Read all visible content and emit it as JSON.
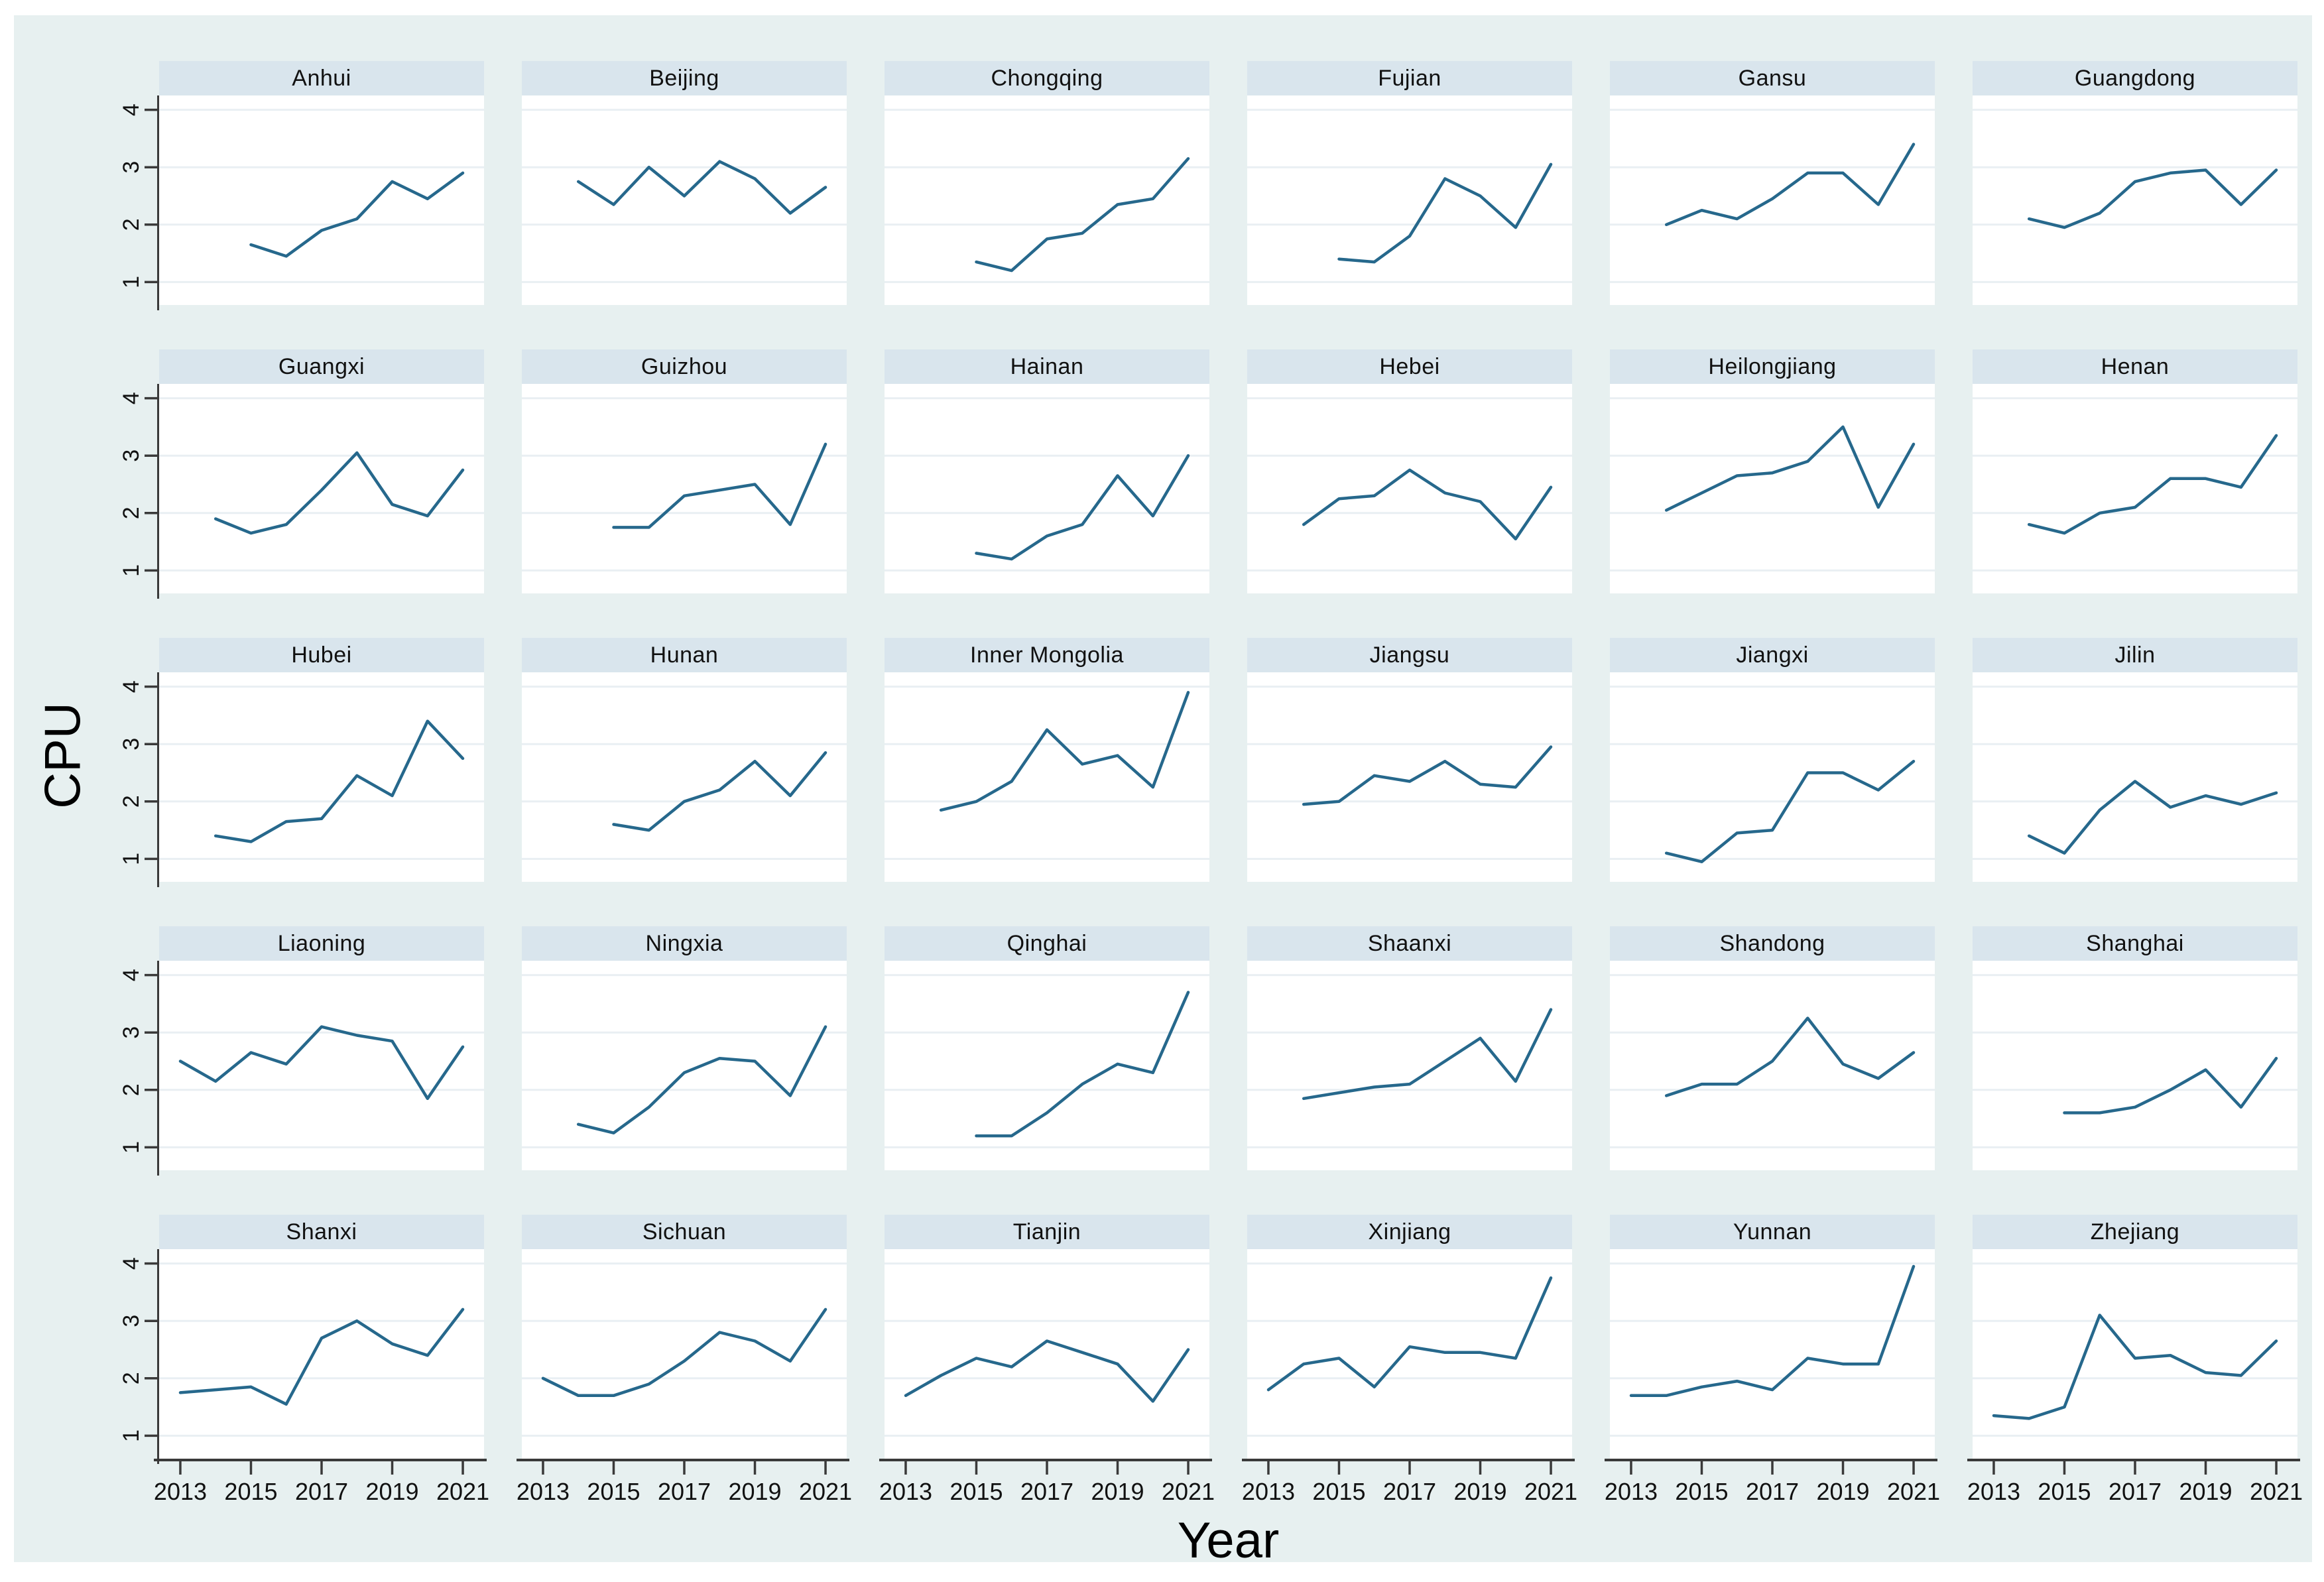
{
  "figure": {
    "background_color": "#e7f0f0",
    "panel_header_color": "#d9e5ed",
    "plot_background": "#ffffff",
    "gridline_color": "#e9eff3",
    "line_color": "#26688c",
    "axis_color": "#3a3a3a",
    "text_color": "#111111"
  },
  "chart_data": {
    "type": "line",
    "title": "",
    "xlabel": "Year",
    "ylabel": "CPU",
    "x_ticks": [
      2013,
      2015,
      2017,
      2019,
      2021
    ],
    "y_ticks": [
      1,
      2,
      3,
      4
    ],
    "x_domain": [
      2012.4,
      2021.6
    ],
    "y_domain": [
      0.6,
      4.25
    ],
    "grid": "horizontal-only",
    "legend_position": "none",
    "layout": {
      "columns": 6,
      "rows": 5
    },
    "panels": [
      {
        "title": "Anhui",
        "years": [
          2015,
          2016,
          2017,
          2018,
          2019,
          2020,
          2021
        ],
        "values": [
          1.65,
          1.45,
          1.9,
          2.1,
          2.75,
          2.45,
          2.9
        ]
      },
      {
        "title": "Beijing",
        "years": [
          2014,
          2015,
          2016,
          2017,
          2018,
          2019,
          2020,
          2021
        ],
        "values": [
          2.75,
          2.35,
          3.0,
          2.5,
          3.1,
          2.8,
          2.2,
          2.65
        ]
      },
      {
        "title": "Chongqing",
        "years": [
          2015,
          2016,
          2017,
          2018,
          2019,
          2020,
          2021
        ],
        "values": [
          1.35,
          1.2,
          1.75,
          1.85,
          2.35,
          2.45,
          3.15
        ]
      },
      {
        "title": "Fujian",
        "years": [
          2015,
          2016,
          2017,
          2018,
          2019,
          2020,
          2021
        ],
        "values": [
          1.4,
          1.35,
          1.8,
          2.8,
          2.5,
          1.95,
          3.05
        ]
      },
      {
        "title": "Gansu",
        "years": [
          2014,
          2015,
          2016,
          2017,
          2018,
          2019,
          2020,
          2021
        ],
        "values": [
          2.0,
          2.25,
          2.1,
          2.45,
          2.9,
          2.9,
          2.35,
          3.4
        ]
      },
      {
        "title": "Guangdong",
        "years": [
          2014,
          2015,
          2016,
          2017,
          2018,
          2019,
          2020,
          2021
        ],
        "values": [
          2.1,
          1.95,
          2.2,
          2.75,
          2.9,
          2.95,
          2.35,
          2.95
        ]
      },
      {
        "title": "Guangxi",
        "years": [
          2014,
          2015,
          2016,
          2017,
          2018,
          2019,
          2020,
          2021
        ],
        "values": [
          1.9,
          1.65,
          1.8,
          2.4,
          3.05,
          2.15,
          1.95,
          2.75
        ]
      },
      {
        "title": "Guizhou",
        "years": [
          2015,
          2016,
          2017,
          2018,
          2019,
          2020,
          2021
        ],
        "values": [
          1.75,
          1.75,
          2.3,
          2.4,
          2.5,
          1.8,
          3.2
        ]
      },
      {
        "title": "Hainan",
        "years": [
          2015,
          2016,
          2017,
          2018,
          2019,
          2020,
          2021
        ],
        "values": [
          1.3,
          1.2,
          1.6,
          1.8,
          2.65,
          1.95,
          3.0
        ]
      },
      {
        "title": "Hebei",
        "years": [
          2014,
          2015,
          2016,
          2017,
          2018,
          2019,
          2020,
          2021
        ],
        "values": [
          1.8,
          2.25,
          2.3,
          2.75,
          2.35,
          2.2,
          1.55,
          2.45
        ]
      },
      {
        "title": "Heilongjiang",
        "years": [
          2014,
          2015,
          2016,
          2017,
          2018,
          2019,
          2020,
          2021
        ],
        "values": [
          2.05,
          2.35,
          2.65,
          2.7,
          2.9,
          3.5,
          2.1,
          3.2
        ]
      },
      {
        "title": "Henan",
        "years": [
          2014,
          2015,
          2016,
          2017,
          2018,
          2019,
          2020,
          2021
        ],
        "values": [
          1.8,
          1.65,
          2.0,
          2.1,
          2.6,
          2.6,
          2.45,
          3.35
        ]
      },
      {
        "title": "Hubei",
        "years": [
          2014,
          2015,
          2016,
          2017,
          2018,
          2019,
          2020,
          2021
        ],
        "values": [
          1.4,
          1.3,
          1.65,
          1.7,
          2.45,
          2.1,
          3.4,
          2.75
        ]
      },
      {
        "title": "Hunan",
        "years": [
          2015,
          2016,
          2017,
          2018,
          2019,
          2020,
          2021
        ],
        "values": [
          1.6,
          1.5,
          2.0,
          2.2,
          2.7,
          2.1,
          2.85
        ]
      },
      {
        "title": "Inner Mongolia",
        "years": [
          2014,
          2015,
          2016,
          2017,
          2018,
          2019,
          2020,
          2021
        ],
        "values": [
          1.85,
          2.0,
          2.35,
          3.25,
          2.65,
          2.8,
          2.25,
          3.9
        ]
      },
      {
        "title": "Jiangsu",
        "years": [
          2014,
          2015,
          2016,
          2017,
          2018,
          2019,
          2020,
          2021
        ],
        "values": [
          1.95,
          2.0,
          2.45,
          2.35,
          2.7,
          2.3,
          2.25,
          2.95
        ]
      },
      {
        "title": "Jiangxi",
        "years": [
          2014,
          2015,
          2016,
          2017,
          2018,
          2019,
          2020,
          2021
        ],
        "values": [
          1.1,
          0.95,
          1.45,
          1.5,
          2.5,
          2.5,
          2.2,
          2.7
        ]
      },
      {
        "title": "Jilin",
        "years": [
          2014,
          2015,
          2016,
          2017,
          2018,
          2019,
          2020,
          2021
        ],
        "values": [
          1.4,
          1.1,
          1.85,
          2.35,
          1.9,
          2.1,
          1.95,
          2.15
        ]
      },
      {
        "title": "Liaoning",
        "years": [
          2013,
          2014,
          2015,
          2016,
          2017,
          2018,
          2019,
          2020,
          2021
        ],
        "values": [
          2.5,
          2.15,
          2.65,
          2.45,
          3.1,
          2.95,
          2.85,
          1.85,
          2.75
        ]
      },
      {
        "title": "Ningxia",
        "years": [
          2014,
          2015,
          2016,
          2017,
          2018,
          2019,
          2020,
          2021
        ],
        "values": [
          1.4,
          1.25,
          1.7,
          2.3,
          2.55,
          2.5,
          1.9,
          3.1
        ]
      },
      {
        "title": "Qinghai",
        "years": [
          2015,
          2016,
          2017,
          2018,
          2019,
          2020,
          2021
        ],
        "values": [
          1.2,
          1.2,
          1.6,
          2.1,
          2.45,
          2.3,
          3.7
        ]
      },
      {
        "title": "Shaanxi",
        "years": [
          2014,
          2015,
          2016,
          2017,
          2018,
          2019,
          2020,
          2021
        ],
        "values": [
          1.85,
          1.95,
          2.05,
          2.1,
          2.5,
          2.9,
          2.15,
          3.4
        ]
      },
      {
        "title": "Shandong",
        "years": [
          2014,
          2015,
          2016,
          2017,
          2018,
          2019,
          2020,
          2021
        ],
        "values": [
          1.9,
          2.1,
          2.1,
          2.5,
          3.25,
          2.45,
          2.2,
          2.65
        ]
      },
      {
        "title": "Shanghai",
        "years": [
          2015,
          2016,
          2017,
          2018,
          2019,
          2020,
          2021
        ],
        "values": [
          1.6,
          1.6,
          1.7,
          2.0,
          2.35,
          1.7,
          2.55
        ]
      },
      {
        "title": "Shanxi",
        "years": [
          2013,
          2014,
          2015,
          2016,
          2017,
          2018,
          2019,
          2020,
          2021
        ],
        "values": [
          1.75,
          1.8,
          1.85,
          1.55,
          2.7,
          3.0,
          2.6,
          2.4,
          3.2
        ]
      },
      {
        "title": "Sichuan",
        "years": [
          2013,
          2014,
          2015,
          2016,
          2017,
          2018,
          2019,
          2020,
          2021
        ],
        "values": [
          2.0,
          1.7,
          1.7,
          1.9,
          2.3,
          2.8,
          2.65,
          2.3,
          3.2
        ]
      },
      {
        "title": "Tianjin",
        "years": [
          2013,
          2014,
          2015,
          2016,
          2017,
          2018,
          2019,
          2020,
          2021
        ],
        "values": [
          1.7,
          2.05,
          2.35,
          2.2,
          2.65,
          2.45,
          2.25,
          1.6,
          2.5
        ]
      },
      {
        "title": "Xinjiang",
        "years": [
          2013,
          2014,
          2015,
          2016,
          2017,
          2018,
          2019,
          2020,
          2021
        ],
        "values": [
          1.8,
          2.25,
          2.35,
          1.85,
          2.55,
          2.45,
          2.45,
          2.35,
          3.75
        ]
      },
      {
        "title": "Yunnan",
        "years": [
          2013,
          2014,
          2015,
          2016,
          2017,
          2018,
          2019,
          2020,
          2021
        ],
        "values": [
          1.7,
          1.7,
          1.85,
          1.95,
          1.8,
          2.35,
          2.25,
          2.25,
          3.95
        ]
      },
      {
        "title": "Zhejiang",
        "years": [
          2013,
          2014,
          2015,
          2016,
          2017,
          2018,
          2019,
          2020,
          2021
        ],
        "values": [
          1.35,
          1.3,
          1.5,
          3.1,
          2.35,
          2.4,
          2.1,
          2.05,
          2.65
        ]
      }
    ]
  }
}
